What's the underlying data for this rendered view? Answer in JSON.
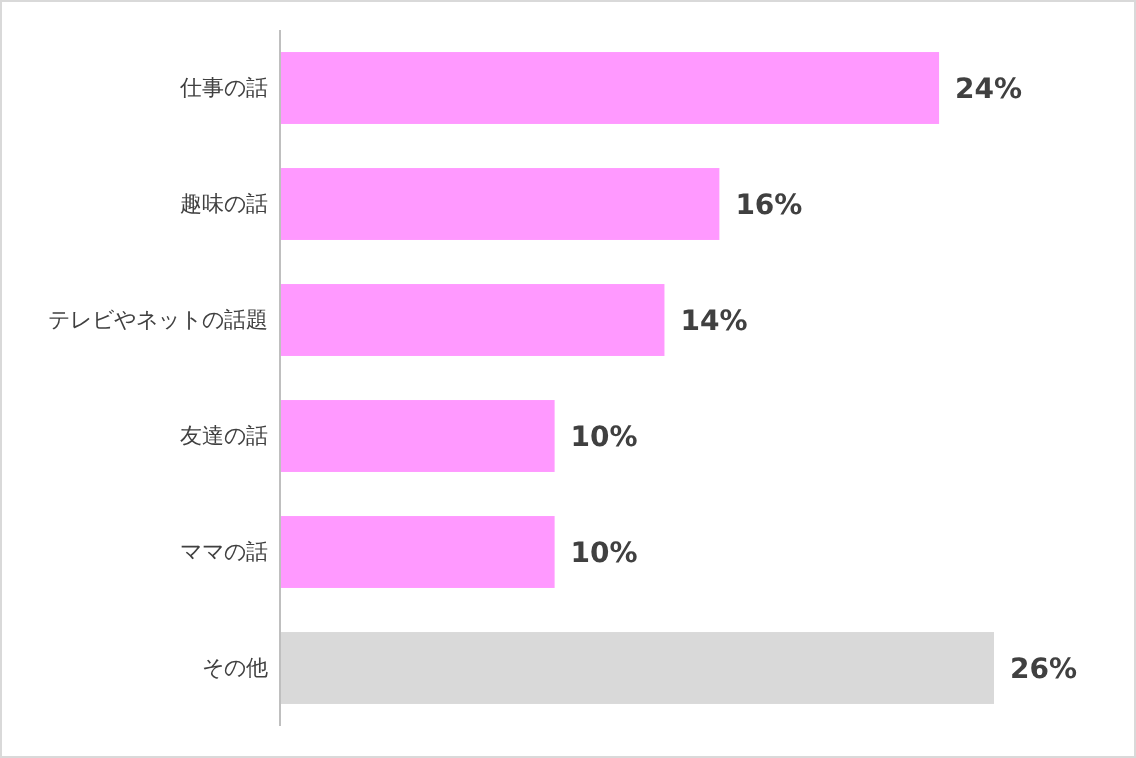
{
  "chart_data": {
    "type": "bar",
    "orientation": "horizontal",
    "categories": [
      "仕事の話",
      "趣味の話",
      "テレビやネットの話題",
      "友達の話",
      "ママの話",
      "その他"
    ],
    "values": [
      24,
      16,
      14,
      10,
      10,
      26
    ],
    "colors": [
      "#ff99ff",
      "#ff99ff",
      "#ff99ff",
      "#ff99ff",
      "#ff99ff",
      "#d9d9d9"
    ],
    "value_labels": [
      "24%",
      "16%",
      "14%",
      "10%",
      "10%",
      "26%"
    ]
  }
}
